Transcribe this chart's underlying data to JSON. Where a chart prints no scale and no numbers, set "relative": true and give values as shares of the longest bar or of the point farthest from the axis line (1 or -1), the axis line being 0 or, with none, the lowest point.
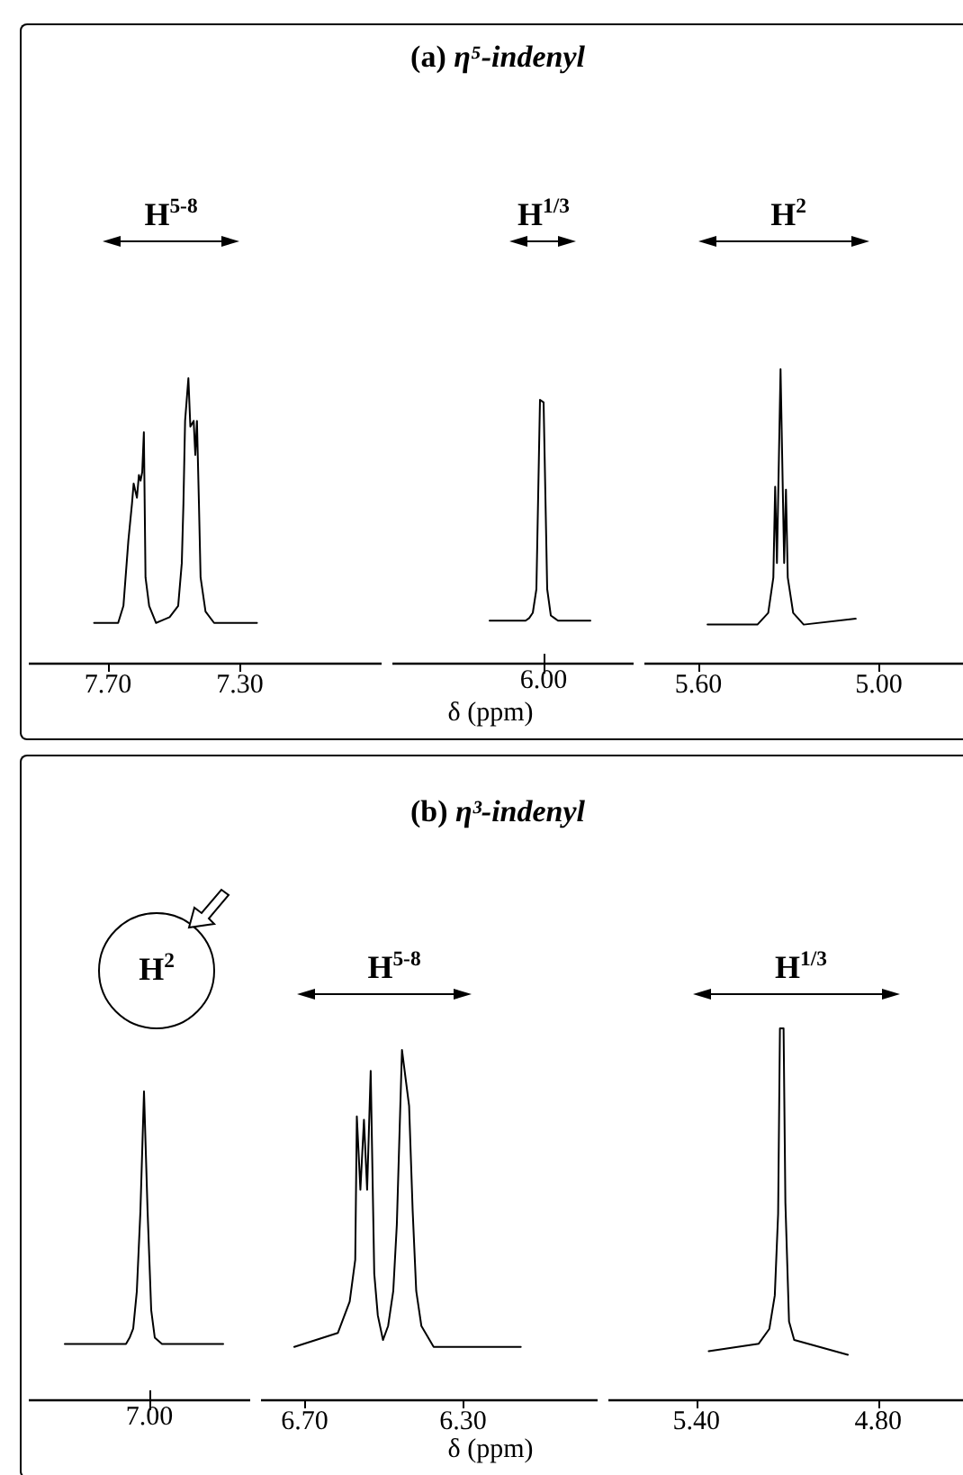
{
  "chart_data": [
    {
      "type": "line",
      "relative": true,
      "marker": "none",
      "annotations": [
        "H$^{5-8}$"
      ],
      "xlim": [
        7.94,
        6.87
      ],
      "xticks": [
        {
          "value": 7.7,
          "label": "7.70"
        },
        {
          "value": 7.3,
          "label": "7.30"
        }
      ],
      "x": [
        7.742,
        7.669,
        7.653,
        7.638,
        7.627,
        7.622,
        7.612,
        7.606,
        7.601,
        7.596,
        7.591,
        7.586,
        7.575,
        7.554,
        7.534,
        7.513,
        7.487,
        7.476,
        7.471,
        7.466,
        7.456,
        7.45,
        7.44,
        7.435,
        7.43,
        7.424,
        7.419,
        7.404,
        7.378,
        7.248
      ],
      "series": [
        {
          "color": "#000000",
          "values": [
            0.14,
            0.14,
            0.2,
            0.43,
            0.56,
            0.63,
            0.58,
            0.66,
            0.64,
            0.67,
            0.81,
            0.3,
            0.2,
            0.14,
            0.15,
            0.16,
            0.2,
            0.35,
            0.56,
            0.85,
            1.0,
            0.83,
            0.85,
            0.73,
            0.85,
            0.56,
            0.3,
            0.18,
            0.14,
            0.14
          ]
        }
      ]
    },
    {
      "type": "line",
      "title": "(a) η⁵-indenyl",
      "xlabel": "δ (ppm)",
      "relative": true,
      "marker": "none",
      "annotations": [
        "H$^{1/3}$",
        "6.00"
      ],
      "categories": [
        null,
        null,
        null,
        null,
        null,
        null,
        null,
        null,
        null,
        null,
        null,
        null,
        null,
        null,
        null,
        null,
        null,
        null,
        null,
        null,
        null,
        null,
        null,
        null,
        null,
        null,
        null,
        null,
        null
      ],
      "series": [
        {
          "color": "#000000",
          "values": [
            0.16,
            0.16,
            0.16,
            0.16,
            0.16,
            0.16,
            0.16,
            0.16,
            0.16,
            0.16,
            0.16,
            0.17,
            0.19,
            0.28,
            1.0,
            0.99,
            0.28,
            0.18,
            0.17,
            0.16,
            0.16,
            0.16,
            0.16,
            0.16,
            0.16,
            0.16,
            0.16,
            0.16,
            0.16
          ]
        }
      ]
    },
    {
      "type": "line",
      "relative": true,
      "marker": "none",
      "annotations": [
        "H$^{2}$"
      ],
      "xlim": [
        5.78,
        4.72
      ],
      "xticks": [
        {
          "value": 5.6,
          "label": "5.60"
        },
        {
          "value": 5.0,
          "label": "5.00"
        }
      ],
      "x": [
        5.57,
        5.404,
        5.368,
        5.351,
        5.345,
        5.339,
        5.327,
        5.315,
        5.309,
        5.303,
        5.285,
        5.25,
        5.077
      ],
      "series": [
        {
          "color": "#000000",
          "values": [
            0.13,
            0.13,
            0.17,
            0.29,
            0.6,
            0.34,
            1.0,
            0.34,
            0.59,
            0.29,
            0.17,
            0.13,
            0.15
          ]
        }
      ]
    },
    {
      "type": "line",
      "relative": true,
      "marker": "none",
      "annotations": [
        "H$^{2}$",
        "7.00"
      ],
      "categories": [
        null,
        null,
        null,
        null,
        null,
        null,
        null,
        null,
        null,
        null,
        null,
        null,
        null,
        null,
        null,
        null,
        null,
        null,
        null,
        null,
        null,
        null,
        null,
        null,
        null,
        null,
        null,
        null,
        null,
        null,
        null,
        null,
        null,
        null,
        null,
        null,
        null,
        null,
        null,
        null,
        null,
        null,
        null,
        null,
        null
      ],
      "series": [
        {
          "color": "#000000",
          "values": [
            0.18,
            0.18,
            0.18,
            0.18,
            0.18,
            0.18,
            0.18,
            0.18,
            0.18,
            0.18,
            0.18,
            0.18,
            0.18,
            0.18,
            0.18,
            0.18,
            0.18,
            0.18,
            0.2,
            0.23,
            0.35,
            0.61,
            1.0,
            0.61,
            0.29,
            0.2,
            0.19,
            0.18,
            0.18,
            0.18,
            0.18,
            0.18,
            0.18,
            0.18,
            0.18,
            0.18,
            0.18,
            0.18,
            0.18,
            0.18,
            0.18,
            0.18,
            0.18,
            0.18,
            0.18
          ]
        }
      ]
    },
    {
      "type": "line",
      "title": "(b) η³-indenyl",
      "xlabel": "δ (ppm)",
      "relative": true,
      "marker": "none",
      "annotations": [
        "H$^{5-8}$"
      ],
      "xlim": [
        6.81,
        5.96
      ],
      "xticks": [
        {
          "value": 6.7,
          "label": "6.70"
        },
        {
          "value": 6.3,
          "label": "6.30"
        }
      ],
      "x": [
        6.726,
        6.616,
        6.586,
        6.572,
        6.568,
        6.559,
        6.55,
        6.542,
        6.533,
        6.524,
        6.515,
        6.502,
        6.489,
        6.476,
        6.467,
        6.454,
        6.436,
        6.427,
        6.418,
        6.405,
        6.374,
        6.154
      ],
      "series": [
        {
          "color": "#000000",
          "values": [
            0.15,
            0.19,
            0.28,
            0.4,
            0.81,
            0.6,
            0.8,
            0.6,
            0.94,
            0.36,
            0.24,
            0.17,
            0.21,
            0.31,
            0.5,
            1.0,
            0.84,
            0.54,
            0.31,
            0.21,
            0.15,
            0.15
          ]
        }
      ]
    },
    {
      "type": "line",
      "relative": true,
      "marker": "none",
      "annotations": [
        "H$^{1/3}$"
      ],
      "xlim": [
        5.69,
        4.52
      ],
      "xticks": [
        {
          "value": 5.4,
          "label": "5.40"
        },
        {
          "value": 4.8,
          "label": "4.80"
        }
      ],
      "x": [
        5.359,
        5.194,
        5.159,
        5.141,
        5.13,
        5.124,
        5.112,
        5.106,
        5.094,
        5.077,
        4.9
      ],
      "series": [
        {
          "color": "#000000",
          "values": [
            0.13,
            0.15,
            0.19,
            0.28,
            0.5,
            1.0,
            1.0,
            0.53,
            0.21,
            0.16,
            0.12
          ]
        }
      ]
    }
  ]
}
